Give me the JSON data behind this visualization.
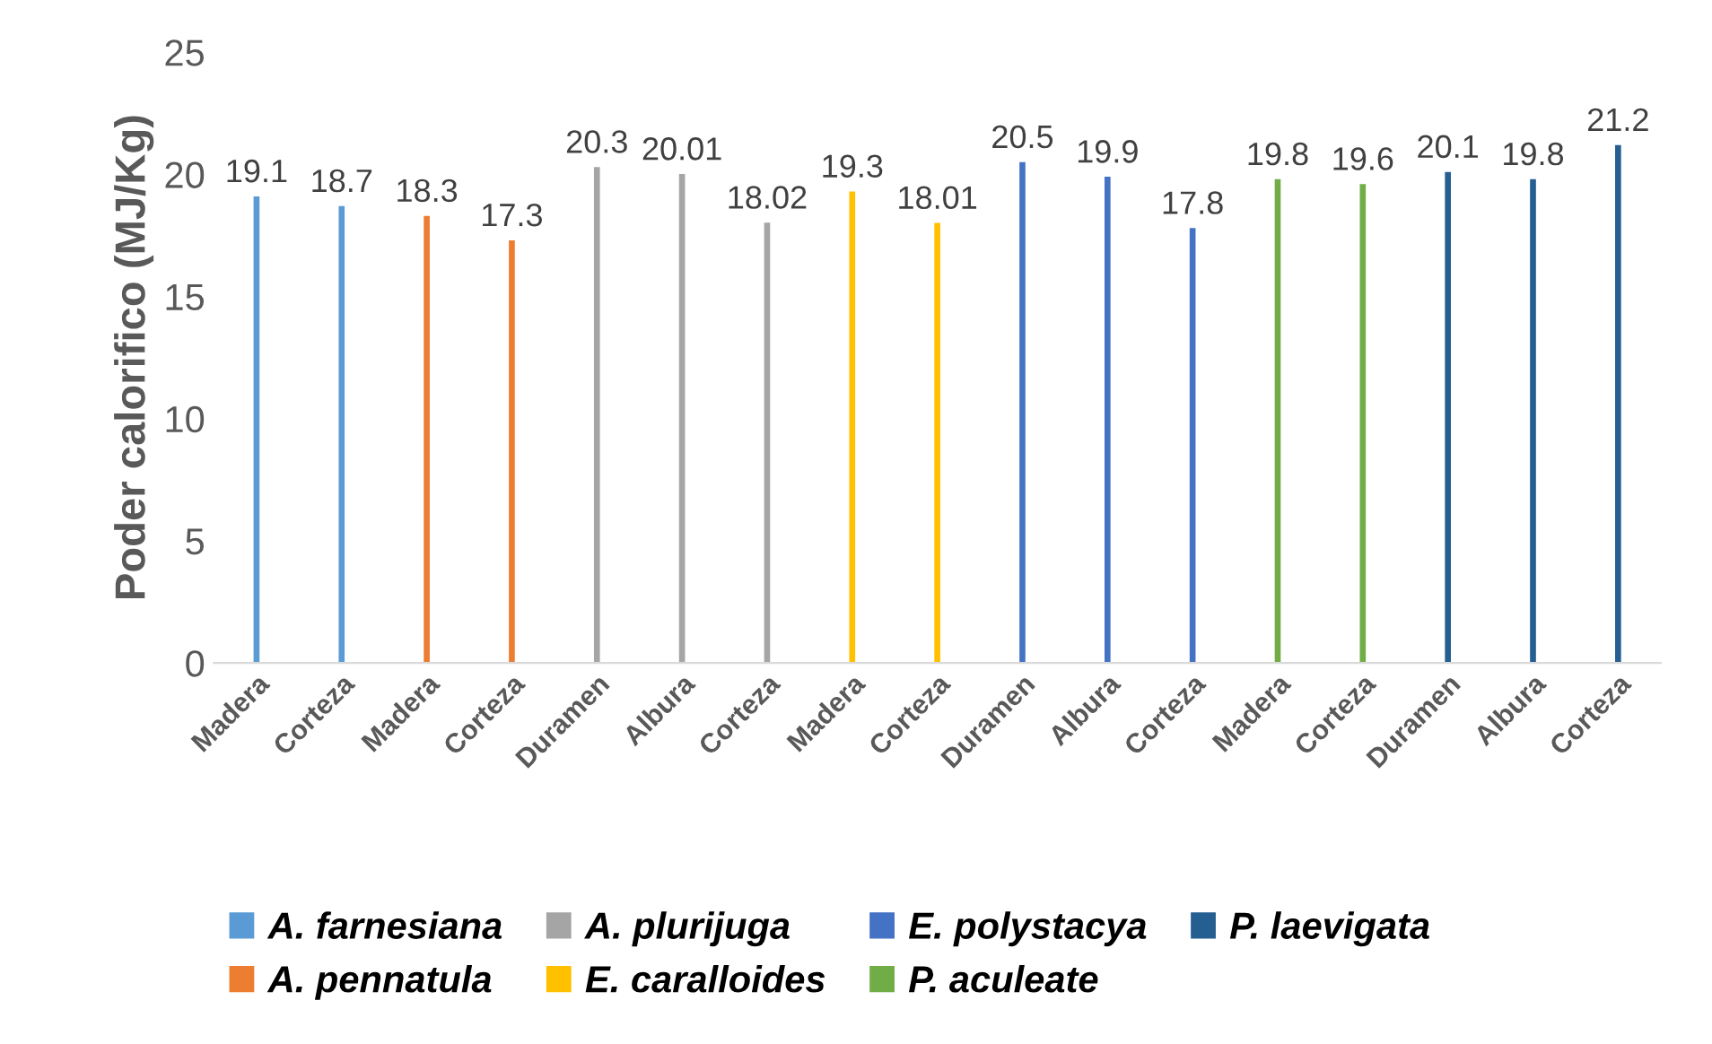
{
  "chart_data": {
    "type": "bar",
    "ylabel": "Poder calorifico (MJ/Kg)",
    "categories": [
      "Madera",
      "Corteza",
      "Madera",
      "Corteza",
      "Duramen",
      "Albura",
      "Corteza",
      "Madera",
      "Corteza",
      "Duramen",
      "Albura",
      "Corteza",
      "Madera",
      "Corteza",
      "Duramen",
      "Albura",
      "Corteza"
    ],
    "series": [
      {
        "name": "A. farnesiana",
        "color": "#5b9bd5",
        "values": [
          19.1,
          18.7,
          null,
          null,
          null,
          null,
          null,
          null,
          null,
          null,
          null,
          null,
          null,
          null,
          null,
          null,
          null
        ]
      },
      {
        "name": "A. pennatula",
        "color": "#ed7d31",
        "values": [
          null,
          null,
          18.3,
          17.3,
          null,
          null,
          null,
          null,
          null,
          null,
          null,
          null,
          null,
          null,
          null,
          null,
          null
        ]
      },
      {
        "name": "A. plurijuga",
        "color": "#a5a5a5",
        "values": [
          null,
          null,
          null,
          null,
          20.3,
          20.01,
          18.02,
          null,
          null,
          null,
          null,
          null,
          null,
          null,
          null,
          null,
          null
        ]
      },
      {
        "name": "E. caralloides",
        "color": "#ffc000",
        "values": [
          null,
          null,
          null,
          null,
          null,
          null,
          null,
          19.3,
          18.01,
          null,
          null,
          null,
          null,
          null,
          null,
          null,
          null
        ]
      },
      {
        "name": "E. polystacya",
        "color": "#4472c4",
        "values": [
          null,
          null,
          null,
          null,
          null,
          null,
          null,
          null,
          null,
          20.5,
          19.9,
          17.8,
          null,
          null,
          null,
          null,
          null
        ]
      },
      {
        "name": "P. aculeate",
        "color": "#70ad47",
        "values": [
          null,
          null,
          null,
          null,
          null,
          null,
          null,
          null,
          null,
          null,
          null,
          null,
          19.8,
          19.6,
          null,
          null,
          null
        ]
      },
      {
        "name": "P. laevigata",
        "color": "#255e91",
        "values": [
          null,
          null,
          null,
          null,
          null,
          null,
          null,
          null,
          null,
          null,
          null,
          null,
          null,
          null,
          20.1,
          19.8,
          21.2
        ]
      }
    ],
    "ylim": [
      0,
      25
    ],
    "yticks": [
      0,
      5,
      10,
      15,
      20,
      25
    ],
    "data_labels": true,
    "legend": "bottom"
  }
}
